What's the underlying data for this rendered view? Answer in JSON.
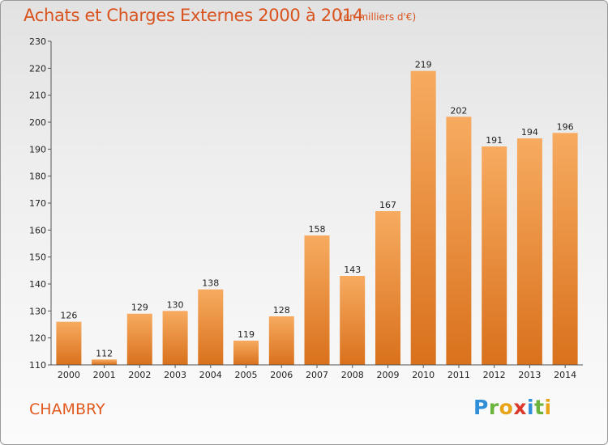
{
  "header": {
    "title": "Achats et Charges Externes 2000 à 2014",
    "unit": "(en milliers d'€)"
  },
  "footer": {
    "commune": "CHAMBRY",
    "logo_letters": [
      "P",
      "r",
      "o",
      "x",
      "i",
      "t",
      "i"
    ],
    "logo_colors": [
      "#2f8fd8",
      "#6ab43c",
      "#e8a317",
      "#d93a2b",
      "#2f8fd8",
      "#6ab43c",
      "#e8a317"
    ]
  },
  "colors": {
    "bar_light": "#f6a65a",
    "bar_dark": "#d9741f",
    "title": "#d9531e"
  },
  "chart_data": {
    "type": "bar",
    "categories": [
      "2000",
      "2001",
      "2002",
      "2003",
      "2004",
      "2005",
      "2006",
      "2007",
      "2008",
      "2009",
      "2010",
      "2011",
      "2012",
      "2013",
      "2014"
    ],
    "values": [
      126,
      112,
      129,
      130,
      138,
      119,
      128,
      158,
      143,
      167,
      219,
      202,
      191,
      194,
      196
    ],
    "ylim": [
      110,
      230
    ],
    "yticks": [
      "110",
      "120",
      "130",
      "140",
      "150",
      "160",
      "170",
      "180",
      "190",
      "200",
      "210",
      "220",
      "230"
    ],
    "grid": false
  }
}
